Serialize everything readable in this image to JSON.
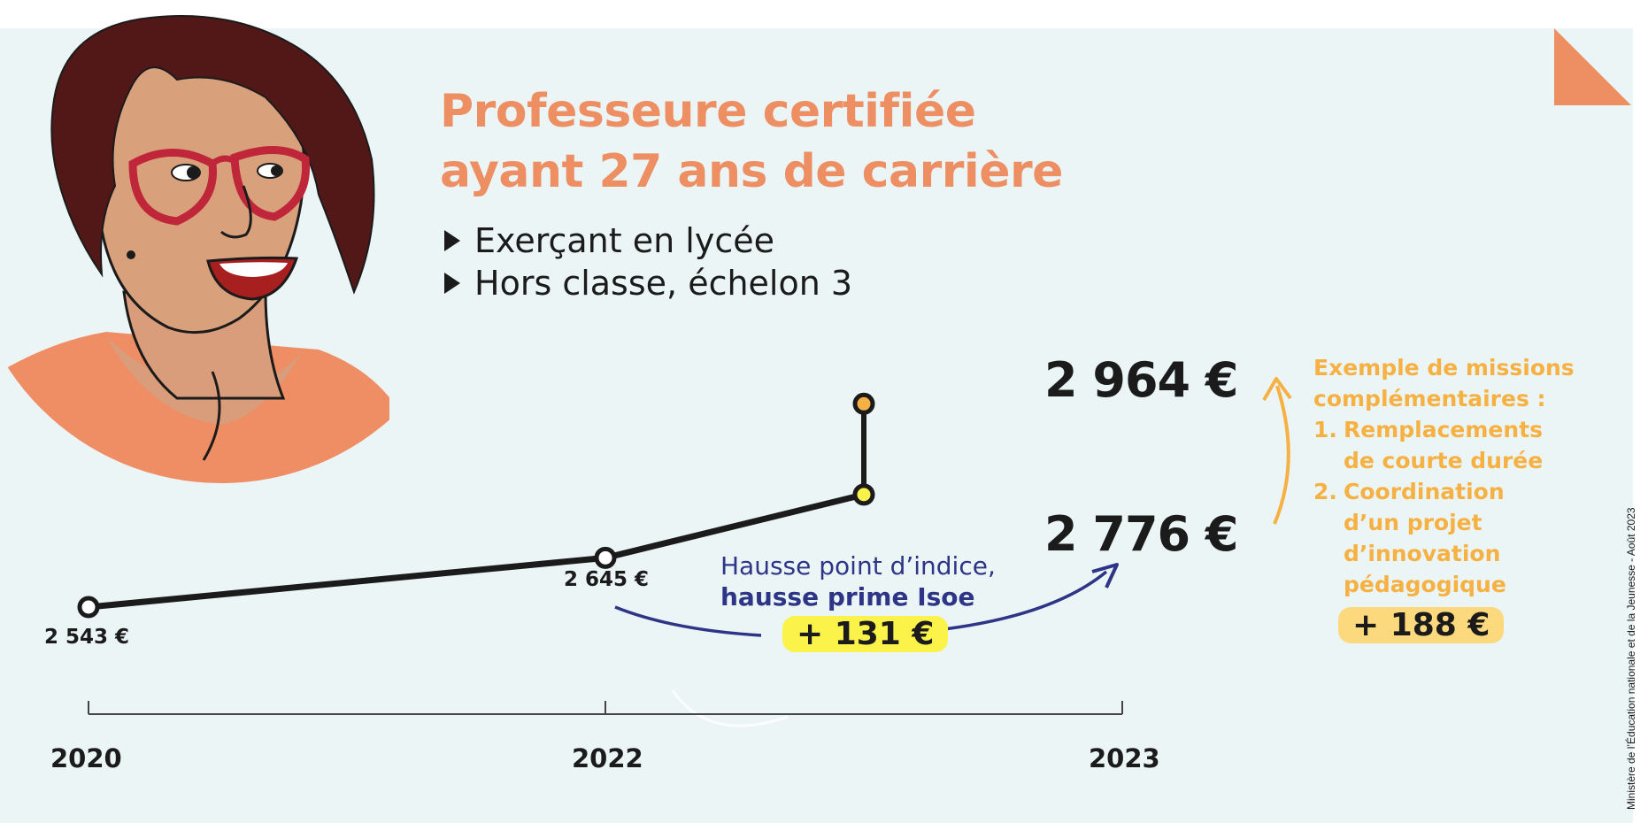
{
  "header": {
    "title_line1": "Professeure certifiée",
    "title_line2": "ayant 27 ans de carrière",
    "bullets": [
      "Exerçant en lycée",
      "Hors classe, échelon 3"
    ]
  },
  "chart_data": {
    "type": "line",
    "x": [
      2020,
      2022,
      2023
    ],
    "x_labels": [
      "2020",
      "2022",
      "2023"
    ],
    "values": [
      2543,
      2645,
      2776
    ],
    "value_labels": [
      "2 543 €",
      "2 645 €",
      "2 776 €"
    ],
    "missions_total": 2964,
    "missions_total_label": "2 964 €",
    "ylim": [
      2500,
      3000
    ],
    "grid": false
  },
  "annotations": {
    "indice_line1": "Hausse point d’indice,",
    "indice_line2": "hausse prime Isoe",
    "indice_increase": "+ 131 €",
    "missions_title_line1": "Exemple de missions",
    "missions_title_line2": "complémentaires :",
    "missions_items": [
      {
        "num": "1.",
        "line1": "Remplacements",
        "line2": "de courte durée"
      },
      {
        "num": "2.",
        "line1": "Coordination",
        "line2": "d’un projet",
        "line3": "d’innovation",
        "line4": "pédagogique"
      }
    ],
    "missions_increase": "+ 188 €"
  },
  "credit": "Ministère de l’Éducation nationale et de la Jeunesse - Août 2023",
  "colors": {
    "accent": "#ee8f63",
    "panel": "#ebf5f6",
    "navy": "#2e3586",
    "yellow": "#fbf24a",
    "gold": "#f6b142",
    "text": "#1b1b1b"
  }
}
